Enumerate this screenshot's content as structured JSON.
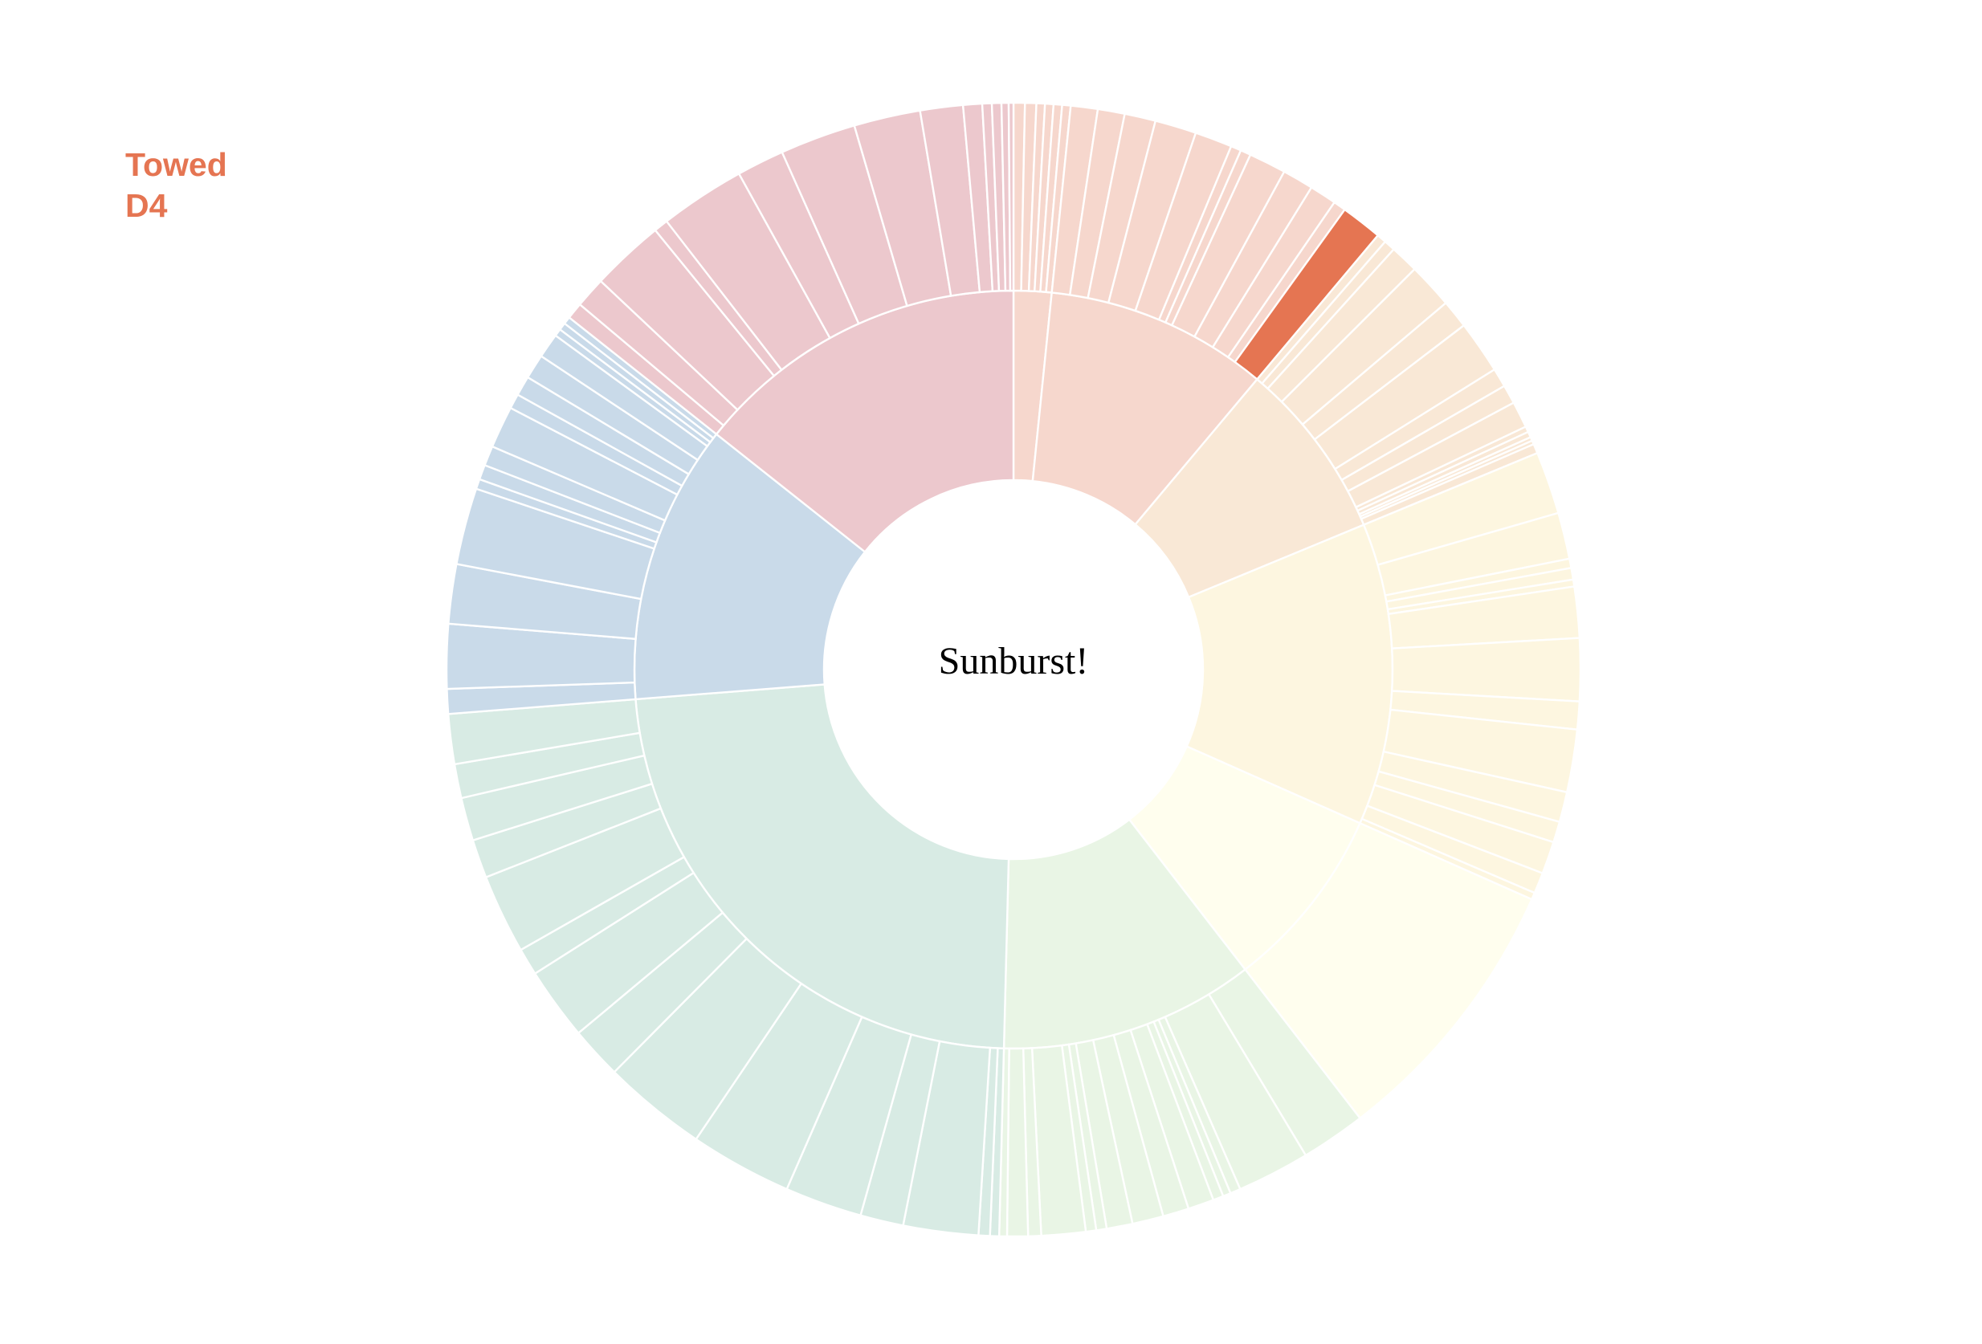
{
  "center_label": "Sunburst!",
  "hover": {
    "line1": "Towed",
    "line2": "D4",
    "color": "#e57552"
  },
  "chart_data": {
    "type": "sunburst",
    "title": "Sunburst!",
    "highlighted_path": [
      "Towed",
      "D4"
    ],
    "highlight_color": "#e57552",
    "categories": [
      {
        "name": "",
        "color": "#f6d7cd",
        "children": [
          {
            "name": "",
            "value": 2.0,
            "children": [
              {
                "value": 0.4
              },
              {
                "value": 0.4
              },
              {
                "value": 0.3
              },
              {
                "value": 0.3
              },
              {
                "value": 0.3
              },
              {
                "value": 0.3
              }
            ]
          },
          {
            "name": "Towed",
            "value": 11.8,
            "children": [
              {
                "value": 1.3
              },
              {
                "value": 1.3
              },
              {
                "value": 1.5
              },
              {
                "value": 2.0
              },
              {
                "value": 1.8
              },
              {
                "value": 0.5
              },
              {
                "value": 0.5
              },
              {
                "value": 1.8
              },
              {
                "value": 1.5
              },
              {
                "value": 1.3
              },
              {
                "value": 0.6
              },
              {
                "name": "D4",
                "value": 2.0
              }
            ]
          }
        ]
      },
      {
        "name": "",
        "color": "#f9e8d6",
        "children": [
          {
            "name": "",
            "value": 9.5,
            "children": [
              {
                "value": 0.5
              },
              {
                "value": 0.6
              },
              {
                "value": 1.5
              },
              {
                "value": 2.4
              },
              {
                "value": 1.5
              },
              {
                "value": 2.8
              },
              {
                "value": 1.0
              },
              {
                "value": 1.0
              },
              {
                "value": 1.4
              },
              {
                "value": 0.3
              },
              {
                "value": 0.3
              },
              {
                "value": 0.2
              },
              {
                "value": 0.2
              },
              {
                "value": 0.5
              }
            ]
          }
        ]
      },
      {
        "name": "",
        "color": "#fdf6e0",
        "children": [
          {
            "name": "",
            "value": 16.0,
            "children": [
              {
                "value": 2.7
              },
              {
                "value": 2.0
              },
              {
                "value": 0.4
              },
              {
                "value": 0.5
              },
              {
                "value": 0.3
              },
              {
                "value": 2.2
              },
              {
                "value": 2.7
              },
              {
                "value": 1.2
              },
              {
                "value": 2.7
              },
              {
                "value": 1.3
              },
              {
                "value": 0.9
              },
              {
                "value": 1.4
              },
              {
                "value": 0.9
              },
              {
                "value": 0.3
              }
            ]
          }
        ]
      },
      {
        "name": "",
        "color": "#fffeee",
        "children": [
          {
            "name": "",
            "value": 9.8,
            "children": [
              {
                "value": 9.8
              }
            ]
          }
        ]
      },
      {
        "name": "",
        "color": "#e9f5e5",
        "children": [
          {
            "name": "",
            "value": 13.5,
            "children": [
              {
                "value": 2.5
              },
              {
                "value": 2.8
              },
              {
                "value": 0.4
              },
              {
                "value": 0.3
              },
              {
                "value": 0.4
              },
              {
                "value": 1.0
              },
              {
                "value": 1.0
              },
              {
                "value": 1.2
              },
              {
                "value": 1.0
              },
              {
                "value": 0.4
              },
              {
                "value": 0.4
              },
              {
                "value": 1.7
              },
              {
                "value": 0.5
              },
              {
                "value": 0.8
              },
              {
                "value": 0.3
              }
            ]
          }
        ]
      },
      {
        "name": "",
        "color": "#d8ebe4",
        "children": [
          {
            "name": "",
            "value": 29.0,
            "children": [
              {
                "value": 0.4
              },
              {
                "value": 0.5
              },
              {
                "value": 3.3
              },
              {
                "value": 1.9
              },
              {
                "value": 3.4
              },
              {
                "value": 4.5
              },
              {
                "value": 4.6
              },
              {
                "value": 2.3
              },
              {
                "value": 3.2
              },
              {
                "value": 1.2
              },
              {
                "value": 3.5
              },
              {
                "value": 1.7
              },
              {
                "value": 1.9
              },
              {
                "value": 1.5
              },
              {
                "value": 2.2
              }
            ]
          }
        ]
      },
      {
        "name": "",
        "color": "#c9dae9",
        "children": [
          {
            "name": "",
            "value": 14.8,
            "children": [
              {
                "value": 1.0
              },
              {
                "value": 2.6
              },
              {
                "value": 2.4
              },
              {
                "value": 3.1
              },
              {
                "value": 0.4
              },
              {
                "value": 0.6
              },
              {
                "value": 0.8
              },
              {
                "value": 1.7
              },
              {
                "value": 0.6
              },
              {
                "value": 0.8
              },
              {
                "value": 1.0
              },
              {
                "value": 1.0
              },
              {
                "value": 0.3
              },
              {
                "value": 0.3
              },
              {
                "value": 0.3
              }
            ]
          }
        ]
      },
      {
        "name": "",
        "color": "#ecc8cd",
        "children": [
          {
            "name": "",
            "value": 17.8,
            "children": [
              {
                "value": 0.7
              },
              {
                "value": 1.3
              },
              {
                "value": 3.1
              },
              {
                "value": 0.6
              },
              {
                "value": 3.6
              },
              {
                "value": 2.0
              },
              {
                "value": 3.2
              },
              {
                "value": 2.8
              },
              {
                "value": 1.8
              },
              {
                "value": 0.8
              },
              {
                "value": 0.4
              },
              {
                "value": 0.4
              },
              {
                "value": 0.3
              },
              {
                "value": 0.2
              }
            ]
          }
        ]
      }
    ]
  }
}
